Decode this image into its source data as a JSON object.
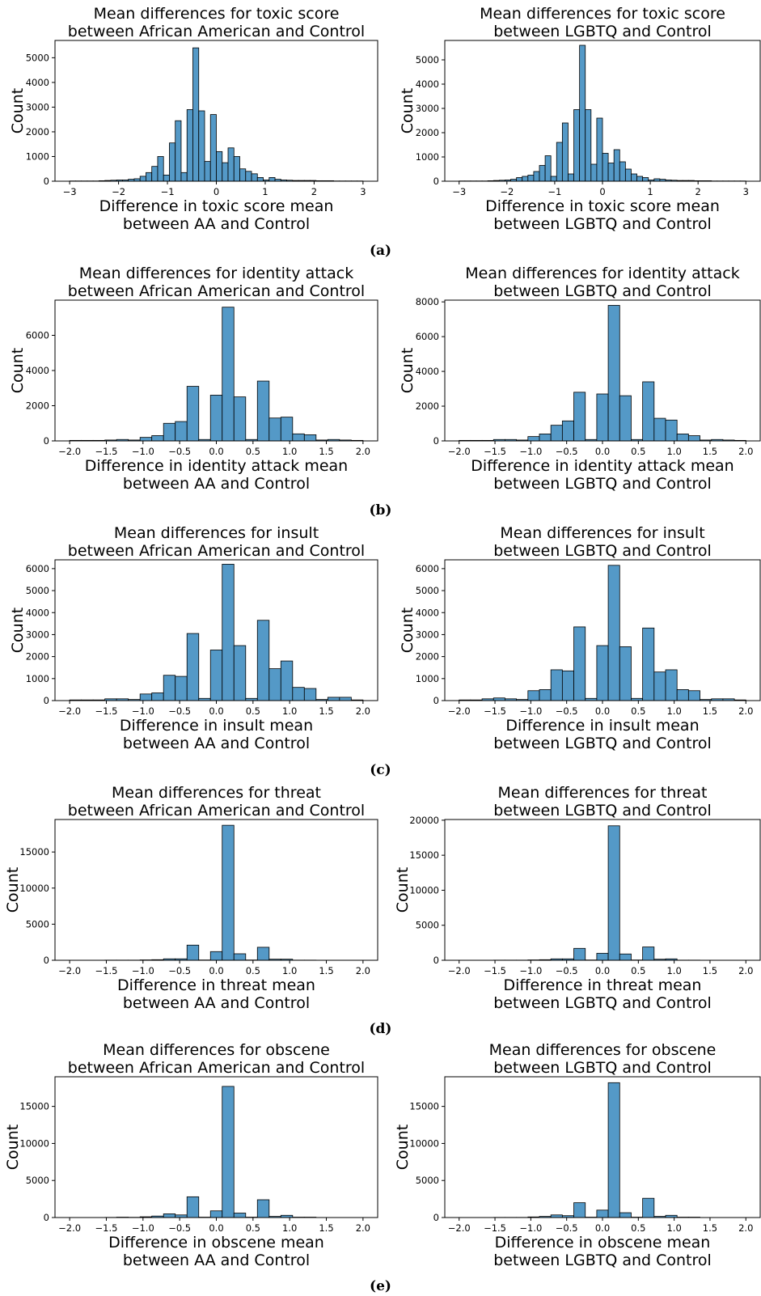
{
  "captions": [
    "(a)",
    "(b)",
    "(c)",
    "(d)",
    "(e)"
  ],
  "colors": {
    "bar": "#5499c7",
    "edge": "#000000"
  },
  "chart_data": [
    {
      "type": "bar",
      "title": "Mean differences for toxic score\nbetween African American and Control",
      "xlabel": "Difference in toxic score mean\nbetween AA and Control",
      "ylabel": "Count",
      "xlim": [
        -3.3,
        3.3
      ],
      "ylim": [
        0,
        5700
      ],
      "xticks": [
        -3,
        -2,
        -1,
        0,
        1,
        2,
        3
      ],
      "xtick_labels": [
        "−3",
        "−2",
        "−1",
        "0",
        "1",
        "2",
        "3"
      ],
      "yticks": [
        0,
        1000,
        2000,
        3000,
        4000,
        5000
      ],
      "grid": false,
      "bins": {
        "start": -3,
        "width": 0.12,
        "count": 50
      },
      "values": [
        10,
        10,
        10,
        10,
        10,
        20,
        30,
        40,
        50,
        50,
        80,
        100,
        200,
        350,
        600,
        1000,
        250,
        1550,
        2450,
        350,
        2900,
        5400,
        2850,
        800,
        2700,
        1200,
        750,
        1350,
        1000,
        500,
        400,
        300,
        150,
        50,
        150,
        80,
        50,
        40,
        30,
        30,
        30,
        30,
        20,
        20,
        20,
        10,
        10,
        10,
        10,
        10
      ]
    },
    {
      "type": "bar",
      "title": "Mean differences for toxic score\nbetween LGBTQ and Control",
      "xlabel": "Difference in toxic score mean\nbetween LGBTQ and Control",
      "ylabel": "Count",
      "xlim": [
        -3.3,
        3.3
      ],
      "ylim": [
        0,
        5800
      ],
      "xticks": [
        -3,
        -2,
        -1,
        0,
        1,
        2,
        3
      ],
      "xtick_labels": [
        "−3",
        "−2",
        "−1",
        "0",
        "1",
        "2",
        "3"
      ],
      "yticks": [
        0,
        1000,
        2000,
        3000,
        4000,
        5000
      ],
      "grid": false,
      "bins": {
        "start": -3,
        "width": 0.12,
        "count": 50
      },
      "values": [
        10,
        10,
        10,
        10,
        10,
        20,
        30,
        40,
        50,
        80,
        150,
        200,
        250,
        400,
        650,
        1050,
        200,
        1600,
        2400,
        300,
        2950,
        5600,
        2950,
        700,
        2600,
        1150,
        750,
        1300,
        800,
        500,
        300,
        200,
        150,
        50,
        100,
        80,
        50,
        40,
        30,
        30,
        30,
        20,
        20,
        20,
        10,
        10,
        10,
        10,
        10,
        10
      ]
    },
    {
      "type": "bar",
      "title": "Mean differences for identity attack\nbetween African American and Control",
      "xlabel": "Difference in identity attack mean\nbetween AA and Control",
      "ylabel": "Count",
      "xlim": [
        -2.2,
        2.2
      ],
      "ylim": [
        0,
        8000
      ],
      "xticks": [
        -2,
        -1.5,
        -1,
        -0.5,
        0,
        0.5,
        1,
        1.5,
        2
      ],
      "xtick_labels": [
        "−2.0",
        "−1.5",
        "−1.0",
        "−0.5",
        "0.0",
        "0.5",
        "1.0",
        "1.5",
        "2.0"
      ],
      "yticks": [
        0,
        2000,
        4000,
        6000
      ],
      "grid": false,
      "bins": {
        "start": -2,
        "width": 0.16,
        "count": 25
      },
      "values": [
        30,
        30,
        30,
        50,
        80,
        50,
        200,
        300,
        1000,
        1100,
        3100,
        80,
        2600,
        7600,
        2500,
        80,
        3400,
        1300,
        1350,
        400,
        350,
        50,
        80,
        50,
        30
      ]
    },
    {
      "type": "bar",
      "title": "Mean differences for identity attack\nbetween LGBTQ and Control",
      "xlabel": "Difference in identity attack mean\nbetween LGBTQ and Control",
      "ylabel": "Count",
      "xlim": [
        -2.2,
        2.2
      ],
      "ylim": [
        0,
        8100
      ],
      "xticks": [
        -2,
        -1.5,
        -1,
        -0.5,
        0,
        0.5,
        1,
        1.5,
        2
      ],
      "xtick_labels": [
        "−2.0",
        "−1.5",
        "−1.0",
        "−0.5",
        "0.0",
        "0.5",
        "1.0",
        "1.5",
        "2.0"
      ],
      "yticks": [
        0,
        2000,
        4000,
        6000,
        8000
      ],
      "grid": false,
      "bins": {
        "start": -2,
        "width": 0.16,
        "count": 25
      },
      "values": [
        30,
        30,
        30,
        80,
        80,
        50,
        250,
        400,
        900,
        1150,
        2800,
        80,
        2700,
        7800,
        2600,
        80,
        3400,
        1300,
        1200,
        400,
        300,
        50,
        80,
        50,
        30
      ]
    },
    {
      "type": "bar",
      "title": "Mean differences for insult\nbetween African American and Control",
      "xlabel": "Difference in insult mean\nbetween AA and Control",
      "ylabel": "Count",
      "xlim": [
        -2.2,
        2.2
      ],
      "ylim": [
        0,
        6400
      ],
      "xticks": [
        -2,
        -1.5,
        -1,
        -0.5,
        0,
        0.5,
        1,
        1.5,
        2
      ],
      "xtick_labels": [
        "−2.0",
        "−1.5",
        "−1.0",
        "−0.5",
        "0.0",
        "0.5",
        "1.0",
        "1.5",
        "2.0"
      ],
      "yticks": [
        0,
        1000,
        2000,
        3000,
        4000,
        5000,
        6000
      ],
      "grid": false,
      "bins": {
        "start": -2,
        "width": 0.16,
        "count": 25
      },
      "values": [
        30,
        30,
        30,
        80,
        80,
        50,
        300,
        350,
        1150,
        1100,
        3050,
        100,
        2300,
        6200,
        2500,
        100,
        3650,
        1450,
        1800,
        600,
        550,
        50,
        150,
        150,
        30
      ]
    },
    {
      "type": "bar",
      "title": "Mean differences for insult\nbetween LGBTQ and Control",
      "xlabel": "Difference in insult mean\nbetween LGBTQ and Control",
      "ylabel": "Count",
      "xlim": [
        -2.2,
        2.2
      ],
      "ylim": [
        0,
        6400
      ],
      "xticks": [
        -2,
        -1.5,
        -1,
        -0.5,
        0,
        0.5,
        1,
        1.5,
        2
      ],
      "xtick_labels": [
        "−2.0",
        "−1.5",
        "−1.0",
        "−0.5",
        "0.0",
        "0.5",
        "1.0",
        "1.5",
        "2.0"
      ],
      "yticks": [
        0,
        1000,
        2000,
        3000,
        4000,
        5000,
        6000
      ],
      "grid": false,
      "bins": {
        "start": -2,
        "width": 0.16,
        "count": 25
      },
      "values": [
        30,
        30,
        80,
        120,
        80,
        50,
        450,
        500,
        1400,
        1350,
        3350,
        100,
        2500,
        6150,
        2450,
        100,
        3300,
        1300,
        1400,
        500,
        450,
        50,
        80,
        80,
        30
      ]
    },
    {
      "type": "bar",
      "title": "Mean differences for threat\nbetween African American and Control",
      "xlabel": "Difference in threat mean\nbetween AA and Control",
      "ylabel": "Count",
      "xlim": [
        -2.2,
        2.2
      ],
      "ylim": [
        0,
        19500
      ],
      "xticks": [
        -2,
        -1.5,
        -1,
        -0.5,
        0,
        0.5,
        1,
        1.5,
        2
      ],
      "xtick_labels": [
        "−2.0",
        "−1.5",
        "−1.0",
        "−0.5",
        "0.0",
        "0.5",
        "1.0",
        "1.5",
        "2.0"
      ],
      "yticks": [
        0,
        5000,
        10000,
        15000
      ],
      "grid": false,
      "bins": {
        "start": -2,
        "width": 0.16,
        "count": 25
      },
      "values": [
        10,
        10,
        10,
        20,
        20,
        20,
        50,
        80,
        200,
        200,
        2100,
        40,
        1200,
        18700,
        900,
        40,
        1800,
        150,
        150,
        20,
        20,
        10,
        10,
        10,
        10
      ]
    },
    {
      "type": "bar",
      "title": "Mean differences for threat\nbetween LGBTQ and Control",
      "xlabel": "Difference in threat mean\nbetween LGBTQ and Control",
      "ylabel": "Count",
      "xlim": [
        -2.2,
        2.2
      ],
      "ylim": [
        0,
        20100
      ],
      "xticks": [
        -2,
        -1.5,
        -1,
        -0.5,
        0,
        0.5,
        1,
        1.5,
        2
      ],
      "xtick_labels": [
        "−2.0",
        "−1.5",
        "−1.0",
        "−0.5",
        "0.0",
        "0.5",
        "1.0",
        "1.5",
        "2.0"
      ],
      "yticks": [
        0,
        5000,
        10000,
        15000,
        20000
      ],
      "grid": false,
      "bins": {
        "start": -2,
        "width": 0.16,
        "count": 25
      },
      "values": [
        10,
        10,
        10,
        20,
        20,
        20,
        50,
        80,
        200,
        200,
        1700,
        40,
        1000,
        19200,
        900,
        40,
        1900,
        150,
        200,
        20,
        20,
        10,
        10,
        10,
        10
      ]
    },
    {
      "type": "bar",
      "title": "Mean differences for obscene\nbetween African American and Control",
      "xlabel": "Difference in obscene mean\nbetween AA and Control",
      "ylabel": "Count",
      "xlim": [
        -2.2,
        2.2
      ],
      "ylim": [
        0,
        19000
      ],
      "xticks": [
        -2,
        -1.5,
        -1,
        -0.5,
        0,
        0.5,
        1,
        1.5,
        2
      ],
      "xtick_labels": [
        "−2.0",
        "−1.5",
        "−1.0",
        "−0.5",
        "0.0",
        "0.5",
        "1.0",
        "1.5",
        "2.0"
      ],
      "yticks": [
        0,
        5000,
        10000,
        15000
      ],
      "grid": false,
      "bins": {
        "start": -2,
        "width": 0.16,
        "count": 25
      },
      "values": [
        10,
        10,
        10,
        20,
        50,
        30,
        100,
        200,
        500,
        350,
        2800,
        50,
        900,
        17700,
        600,
        50,
        2400,
        150,
        300,
        50,
        50,
        10,
        10,
        10,
        10
      ]
    },
    {
      "type": "bar",
      "title": "Mean differences for obscene\nbetween LGBTQ and Control",
      "xlabel": "Difference in obscene mean\nbetween LGBTQ and Control",
      "ylabel": "Count",
      "xlim": [
        -2.2,
        2.2
      ],
      "ylim": [
        0,
        19000
      ],
      "xticks": [
        -2,
        -1.5,
        -1,
        -0.5,
        0,
        0.5,
        1,
        1.5,
        2
      ],
      "xtick_labels": [
        "−2.0",
        "−1.5",
        "−1.0",
        "−0.5",
        "0.0",
        "0.5",
        "1.0",
        "1.5",
        "2.0"
      ],
      "yticks": [
        0,
        5000,
        10000,
        15000
      ],
      "grid": false,
      "bins": {
        "start": -2,
        "width": 0.16,
        "count": 25
      },
      "values": [
        10,
        10,
        10,
        20,
        20,
        20,
        80,
        150,
        350,
        250,
        2000,
        50,
        1000,
        18200,
        650,
        50,
        2600,
        150,
        300,
        50,
        50,
        10,
        10,
        10,
        10
      ]
    }
  ]
}
